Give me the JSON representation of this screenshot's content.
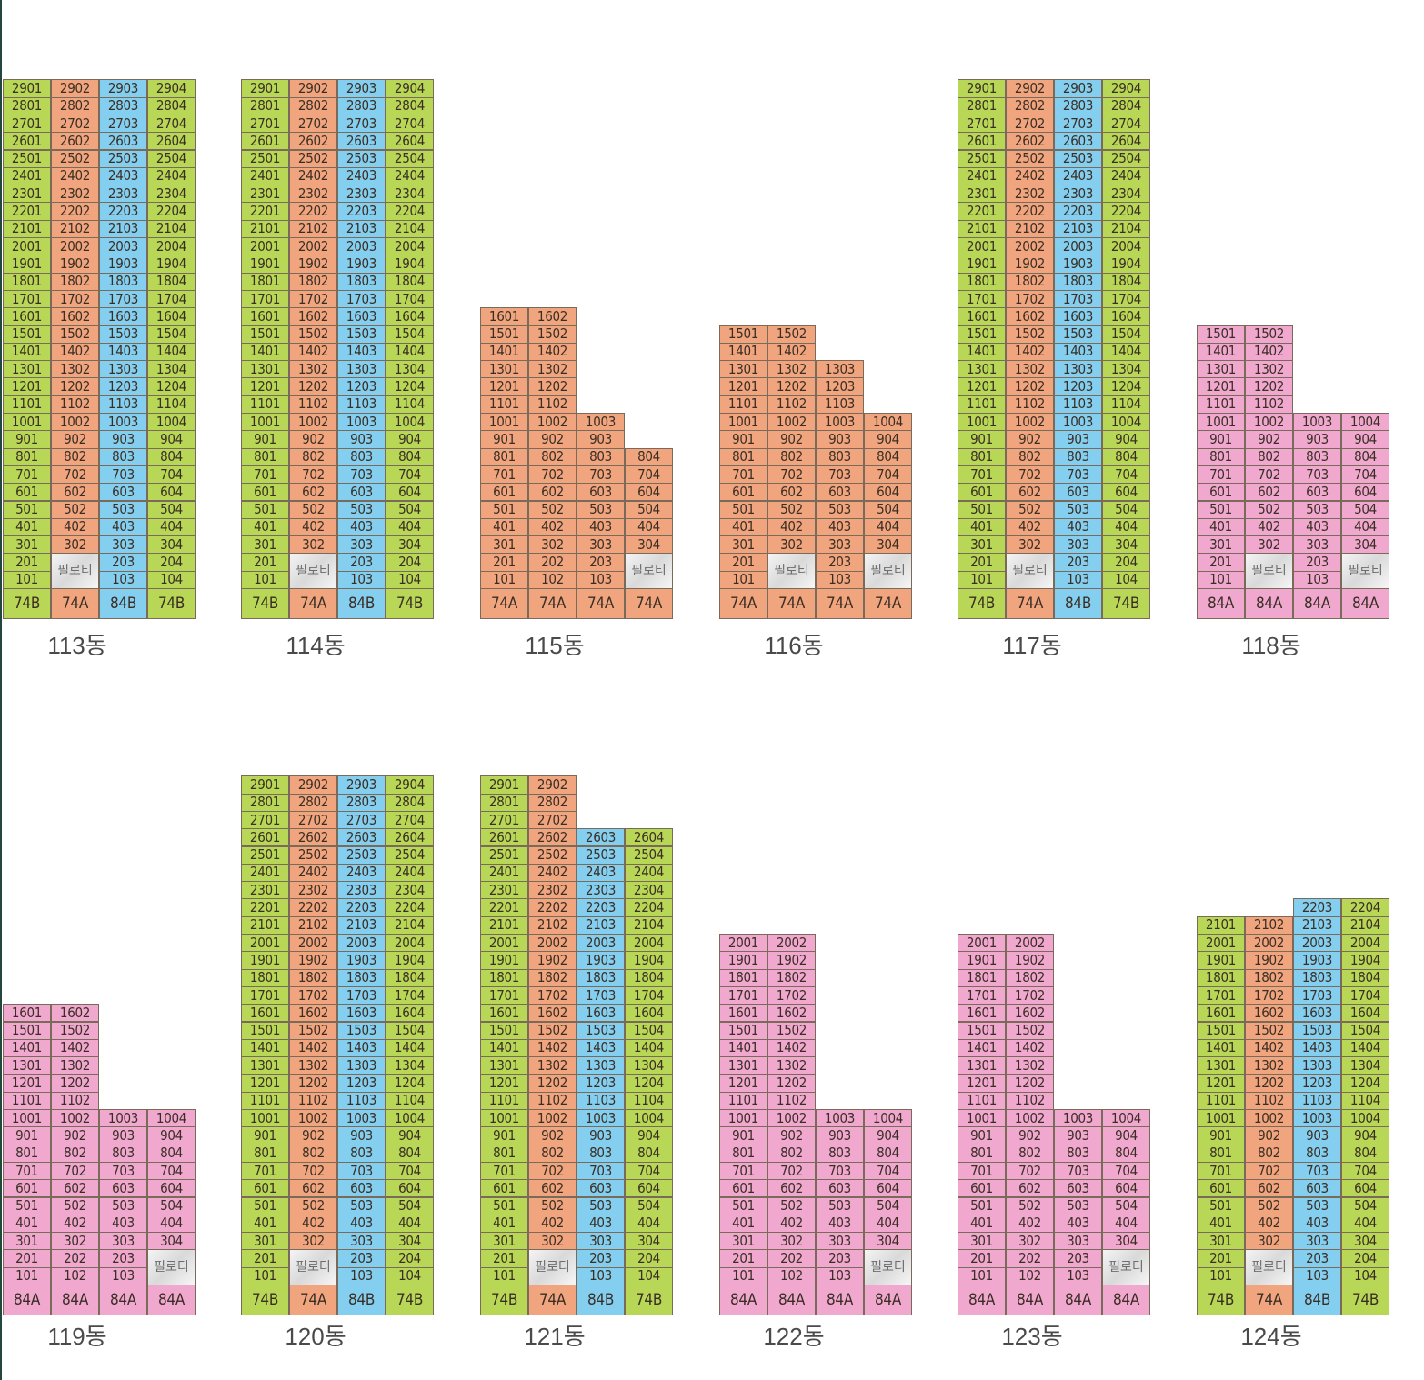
{
  "colors": {
    "74B": "#b9d756",
    "74A": "#f0a57e",
    "84B": "#84cff0",
    "84A": "#f1a8cf",
    "piloti": "#e6e6e6"
  },
  "piloti_label": "필로티",
  "buildings": [
    {
      "name": "113동",
      "lines": [
        {
          "type": "74B",
          "top_floor": 29
        },
        {
          "type": "74A",
          "top_floor": 29,
          "piloti_floors": [
            1,
            2
          ]
        },
        {
          "type": "84B",
          "top_floor": 29
        },
        {
          "type": "74B",
          "top_floor": 29
        }
      ]
    },
    {
      "name": "114동",
      "lines": [
        {
          "type": "74B",
          "top_floor": 29
        },
        {
          "type": "74A",
          "top_floor": 29,
          "piloti_floors": [
            1,
            2
          ]
        },
        {
          "type": "84B",
          "top_floor": 29
        },
        {
          "type": "74B",
          "top_floor": 29
        }
      ]
    },
    {
      "name": "115동",
      "lines": [
        {
          "type": "74A",
          "top_floor": 16
        },
        {
          "type": "74A",
          "top_floor": 16
        },
        {
          "type": "74A",
          "top_floor": 10
        },
        {
          "type": "74A",
          "top_floor": 8,
          "piloti_floors": [
            1,
            2
          ]
        }
      ]
    },
    {
      "name": "116동",
      "lines": [
        {
          "type": "74A",
          "top_floor": 15
        },
        {
          "type": "74A",
          "top_floor": 15,
          "piloti_floors": [
            1,
            2
          ]
        },
        {
          "type": "74A",
          "top_floor": 13
        },
        {
          "type": "74A",
          "top_floor": 10,
          "piloti_floors": [
            1,
            2
          ]
        }
      ]
    },
    {
      "name": "117동",
      "lines": [
        {
          "type": "74B",
          "top_floor": 29
        },
        {
          "type": "74A",
          "top_floor": 29,
          "piloti_floors": [
            1,
            2
          ]
        },
        {
          "type": "84B",
          "top_floor": 29
        },
        {
          "type": "74B",
          "top_floor": 29
        }
      ]
    },
    {
      "name": "118동",
      "lines": [
        {
          "type": "84A",
          "top_floor": 15
        },
        {
          "type": "84A",
          "top_floor": 15,
          "piloti_floors": [
            1,
            2
          ]
        },
        {
          "type": "84A",
          "top_floor": 10
        },
        {
          "type": "84A",
          "top_floor": 10,
          "piloti_floors": [
            1,
            2
          ]
        }
      ]
    },
    {
      "name": "119동",
      "lines": [
        {
          "type": "84A",
          "top_floor": 16
        },
        {
          "type": "84A",
          "top_floor": 16
        },
        {
          "type": "84A",
          "top_floor": 10
        },
        {
          "type": "84A",
          "top_floor": 10,
          "piloti_floors": [
            1,
            2
          ]
        }
      ]
    },
    {
      "name": "120동",
      "lines": [
        {
          "type": "74B",
          "top_floor": 29
        },
        {
          "type": "74A",
          "top_floor": 29,
          "piloti_floors": [
            1,
            2
          ]
        },
        {
          "type": "84B",
          "top_floor": 29
        },
        {
          "type": "74B",
          "top_floor": 29
        }
      ]
    },
    {
      "name": "121동",
      "lines": [
        {
          "type": "74B",
          "top_floor": 29
        },
        {
          "type": "74A",
          "top_floor": 29,
          "piloti_floors": [
            1,
            2
          ]
        },
        {
          "type": "84B",
          "top_floor": 26
        },
        {
          "type": "74B",
          "top_floor": 26
        }
      ]
    },
    {
      "name": "122동",
      "lines": [
        {
          "type": "84A",
          "top_floor": 20
        },
        {
          "type": "84A",
          "top_floor": 20
        },
        {
          "type": "84A",
          "top_floor": 10
        },
        {
          "type": "84A",
          "top_floor": 10,
          "piloti_floors": [
            1,
            2
          ]
        }
      ]
    },
    {
      "name": "123동",
      "lines": [
        {
          "type": "84A",
          "top_floor": 20
        },
        {
          "type": "84A",
          "top_floor": 20
        },
        {
          "type": "84A",
          "top_floor": 10
        },
        {
          "type": "84A",
          "top_floor": 10,
          "piloti_floors": [
            1,
            2
          ]
        }
      ]
    },
    {
      "name": "124동",
      "lines": [
        {
          "type": "74B",
          "top_floor": 21
        },
        {
          "type": "74A",
          "top_floor": 21,
          "piloti_floors": [
            1,
            2
          ]
        },
        {
          "type": "84B",
          "top_floor": 22
        },
        {
          "type": "74B",
          "top_floor": 22
        }
      ]
    }
  ]
}
